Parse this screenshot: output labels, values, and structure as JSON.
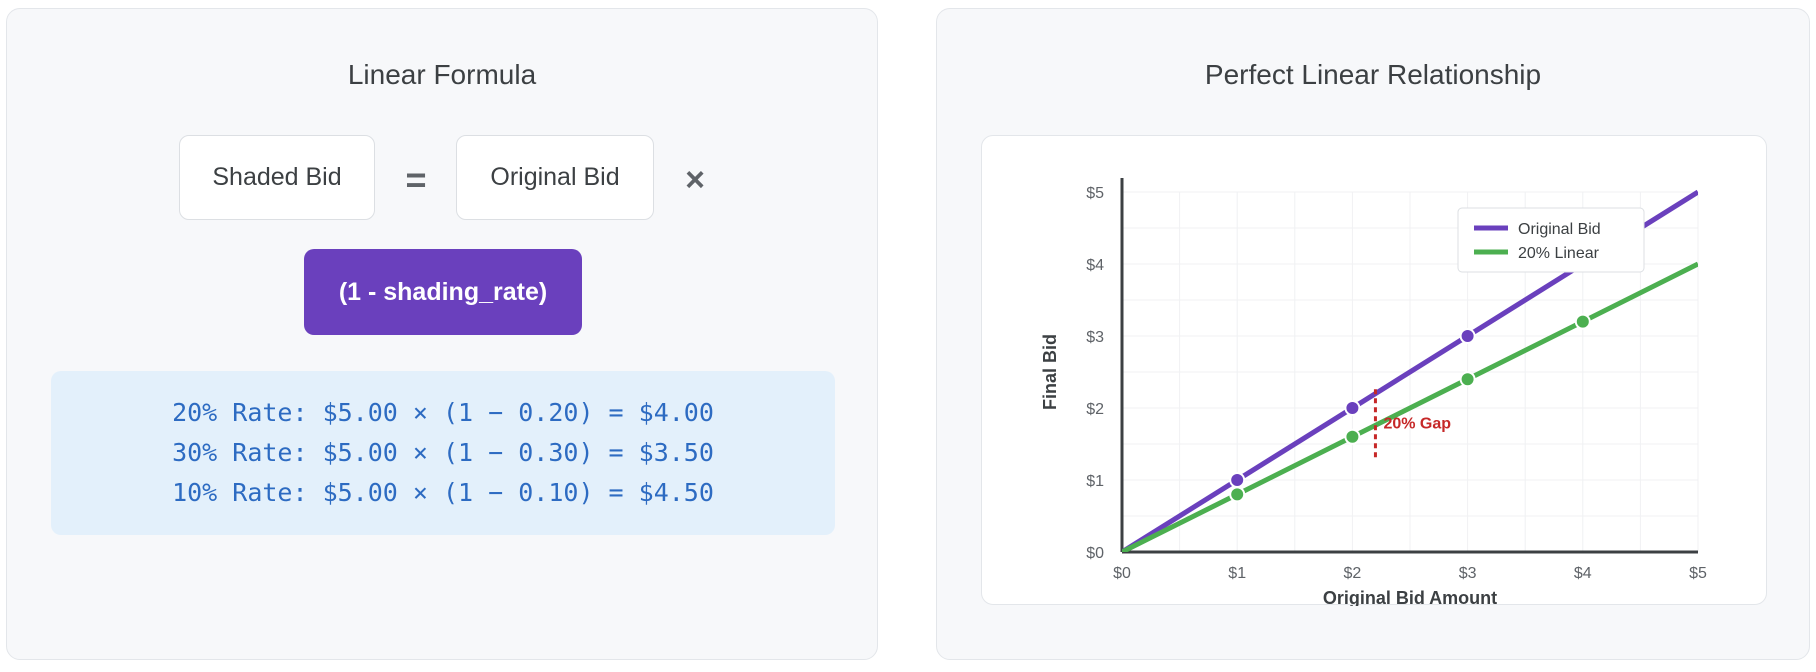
{
  "left_panel": {
    "title": "Linear Formula",
    "formula": {
      "left": "Shaded Bid",
      "equals": "=",
      "right": "Original Bid",
      "times": "×",
      "factor": "(1 - shading_rate)"
    },
    "examples": [
      "20% Rate: $5.00 × (1 − 0.20) = $4.00",
      "30% Rate: $5.00 × (1 − 0.30) = $3.50",
      "10% Rate: $5.00 × (1 − 0.10) = $4.50"
    ]
  },
  "right_panel": {
    "title": "Perfect Linear Relationship"
  },
  "chart_data": {
    "type": "line",
    "title": "",
    "xlabel": "Original Bid Amount",
    "ylabel": "Final Bid",
    "xlim": [
      0,
      5
    ],
    "ylim": [
      0,
      5
    ],
    "x_ticks": [
      "$0",
      "$1",
      "$2",
      "$3",
      "$4",
      "$5"
    ],
    "y_ticks": [
      "$0",
      "$1",
      "$2",
      "$3",
      "$4",
      "$5"
    ],
    "grid": true,
    "legend_position": "top-right",
    "series": [
      {
        "name": "Original Bid",
        "color": "#6a40bd",
        "line": [
          [
            0,
            0
          ],
          [
            5,
            5
          ]
        ],
        "points": [
          [
            1,
            1
          ],
          [
            2,
            2
          ],
          [
            3,
            3
          ]
        ]
      },
      {
        "name": "20% Linear",
        "color": "#4caf50",
        "line": [
          [
            0,
            0
          ],
          [
            5,
            4
          ]
        ],
        "points": [
          [
            1,
            0.8
          ],
          [
            2,
            1.6
          ],
          [
            3,
            2.4
          ],
          [
            4,
            3.2
          ]
        ]
      }
    ],
    "annotations": [
      {
        "text": "20% Gap",
        "x": 2.2,
        "y_from": 1.4,
        "y_to": 2.2,
        "color": "#c62828"
      }
    ]
  }
}
